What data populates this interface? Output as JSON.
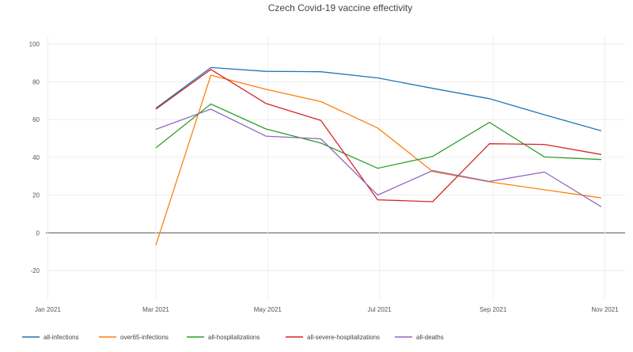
{
  "chart_data": {
    "type": "line",
    "title": "Czech Covid-19 vaccine effectivity",
    "xlabel": "",
    "ylabel": "",
    "x_ticks": [
      {
        "date": "2021-01-01",
        "label": "Jan 2021"
      },
      {
        "date": "2021-03-01",
        "label": "Mar 2021"
      },
      {
        "date": "2021-05-01",
        "label": "May 2021"
      },
      {
        "date": "2021-07-01",
        "label": "Jul 2021"
      },
      {
        "date": "2021-09-01",
        "label": "Sep 2021"
      },
      {
        "date": "2021-11-01",
        "label": "Nov 2021"
      }
    ],
    "y_ticks": [
      -20,
      0,
      20,
      40,
      60,
      80,
      100
    ],
    "xlim": [
      "2020-12-31",
      "2021-11-12"
    ],
    "ylim": [
      -35,
      104
    ],
    "grid": true,
    "legend_position": "bottom",
    "x": [
      "2021-03-01",
      "2021-03-31",
      "2021-04-30",
      "2021-05-30",
      "2021-06-30",
      "2021-07-30",
      "2021-08-30",
      "2021-09-29",
      "2021-10-30"
    ],
    "series": [
      {
        "name": "all-infections",
        "color": "#1f77b4",
        "values": [
          66,
          87.5,
          85.5,
          85.3,
          82,
          76.5,
          71,
          62.5,
          54
        ]
      },
      {
        "name": "over65-infections",
        "color": "#ff7f0e",
        "values": [
          -6.5,
          83.5,
          76,
          69.5,
          55.5,
          32.5,
          27,
          22.8,
          18.5
        ]
      },
      {
        "name": "all-hospitalizations",
        "color": "#2ca02c",
        "values": [
          45,
          68.2,
          55,
          47.5,
          34.2,
          40.5,
          58.5,
          40.2,
          38.8
        ]
      },
      {
        "name": "all-severe-hospitalizations",
        "color": "#d62728",
        "values": [
          65.5,
          86.5,
          68.5,
          59.5,
          17.5,
          16.5,
          47.2,
          46.8,
          41.5
        ]
      },
      {
        "name": "all-deaths",
        "color": "#9467bd",
        "values": [
          54.8,
          65.5,
          51.2,
          49.8,
          20,
          33,
          27.2,
          32.2,
          13.8
        ]
      }
    ]
  }
}
